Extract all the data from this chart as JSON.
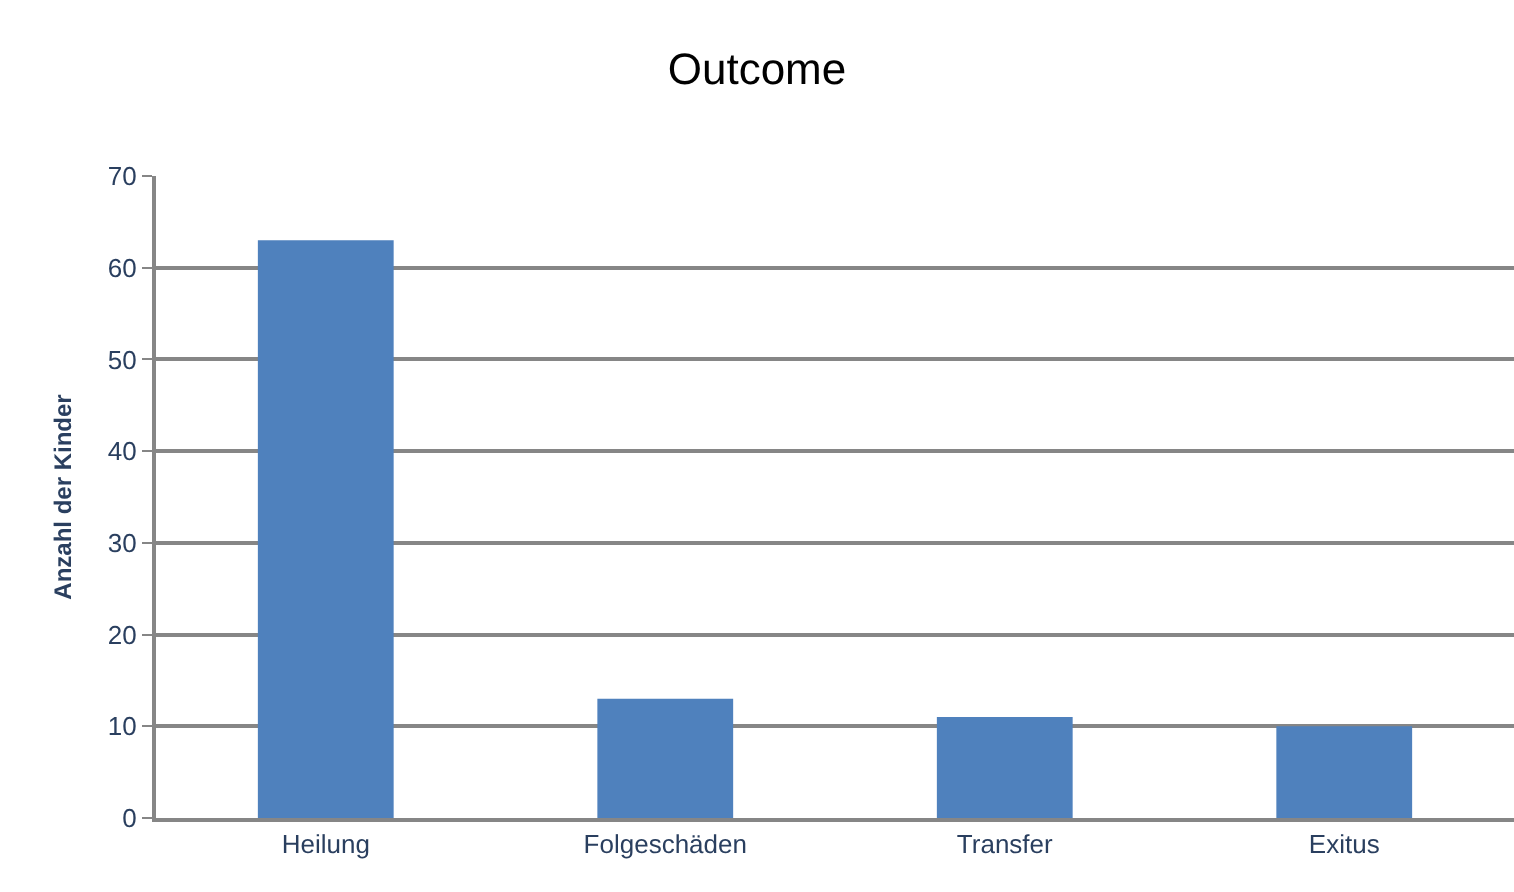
{
  "chart_data": {
    "type": "bar",
    "title": "Outcome",
    "ylabel": "Anzahl der Kinder",
    "categories": [
      "Heilung",
      "Folgeschäden",
      "Transfer",
      "Exitus"
    ],
    "values": [
      63,
      13,
      11,
      10
    ],
    "color": "#4f81bd",
    "ylim": [
      0,
      70
    ],
    "yticks": [
      0,
      10,
      20,
      30,
      40,
      50,
      60,
      70
    ],
    "grid": "y",
    "legend": false
  }
}
